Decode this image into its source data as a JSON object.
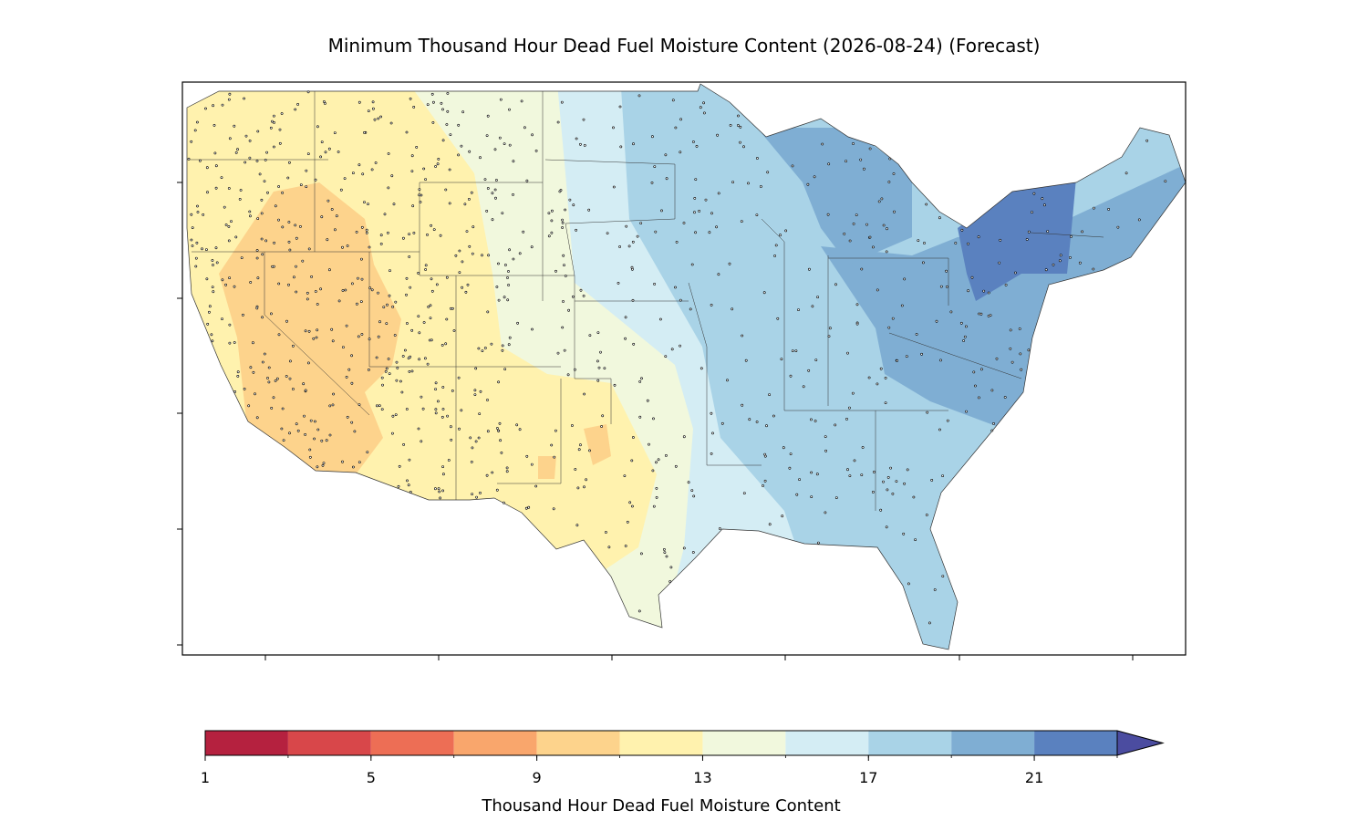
{
  "title": "Minimum Thousand Hour Dead Fuel Moisture Content (2026-08-24) (Forecast)",
  "colorbar": {
    "label": "Thousand Hour Dead Fuel Moisture Content",
    "levels": [
      1,
      3,
      5,
      7,
      9,
      11,
      13,
      15,
      17,
      19,
      21,
      23
    ],
    "colors": [
      "#b5213f",
      "#d8474a",
      "#ed6e55",
      "#f9a66c",
      "#fdd38c",
      "#fff2ae",
      "#f1f8dd",
      "#d4edf4",
      "#a9d3e7",
      "#7faed3",
      "#5a81bf"
    ],
    "extend_color": "#4b4ca0",
    "ticks": [
      1,
      5,
      9,
      13,
      17,
      21
    ]
  }
}
